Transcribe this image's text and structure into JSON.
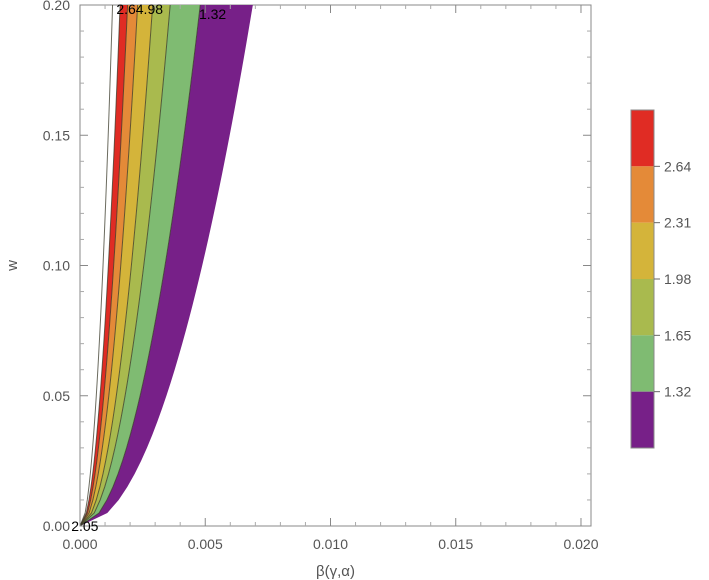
{
  "chart_data": {
    "type": "contour",
    "xlabel": "β(γ,α)",
    "ylabel": "w",
    "xlim": [
      0,
      0.0204
    ],
    "ylim": [
      0,
      0.2
    ],
    "x_ticks": [
      {
        "value": 0.0,
        "label": "0.000"
      },
      {
        "value": 0.005,
        "label": "0.005"
      },
      {
        "value": 0.01,
        "label": "0.010"
      },
      {
        "value": 0.015,
        "label": "0.015"
      },
      {
        "value": 0.02,
        "label": "0.020"
      }
    ],
    "y_ticks": [
      {
        "value": 0.0,
        "label": "0.00"
      },
      {
        "value": 0.05,
        "label": "0.05"
      },
      {
        "value": 0.1,
        "label": "0.10"
      },
      {
        "value": 0.15,
        "label": "0.15"
      },
      {
        "value": 0.2,
        "label": "0.20"
      }
    ],
    "boundary_x_at_top": [
      0.0069,
      0.0048,
      0.0036,
      0.0029,
      0.0023,
      0.0019,
      0.0016,
      0.0013
    ],
    "bands": [
      {
        "color": "#772088"
      },
      {
        "color": "#7fbb72"
      },
      {
        "color": "#a9ba4e"
      },
      {
        "color": "#d4b43a"
      },
      {
        "color": "#e48a38"
      },
      {
        "color": "#e02c24"
      }
    ],
    "contour_labels": [
      {
        "text": "2.64.98",
        "x": 0.00145,
        "y": 0.1985
      },
      {
        "text": "1.32",
        "x": 0.00475,
        "y": 0.1965
      },
      {
        "text": "2.05",
        "x": -0.00035,
        "y": 0.0
      }
    ],
    "legend": {
      "colors": [
        "#e02c24",
        "#e48a38",
        "#d4b43a",
        "#a9ba4e",
        "#7fbb72",
        "#772088"
      ],
      "labels": [
        "2.64",
        "2.31",
        "1.98",
        "1.65",
        "1.32"
      ]
    }
  }
}
